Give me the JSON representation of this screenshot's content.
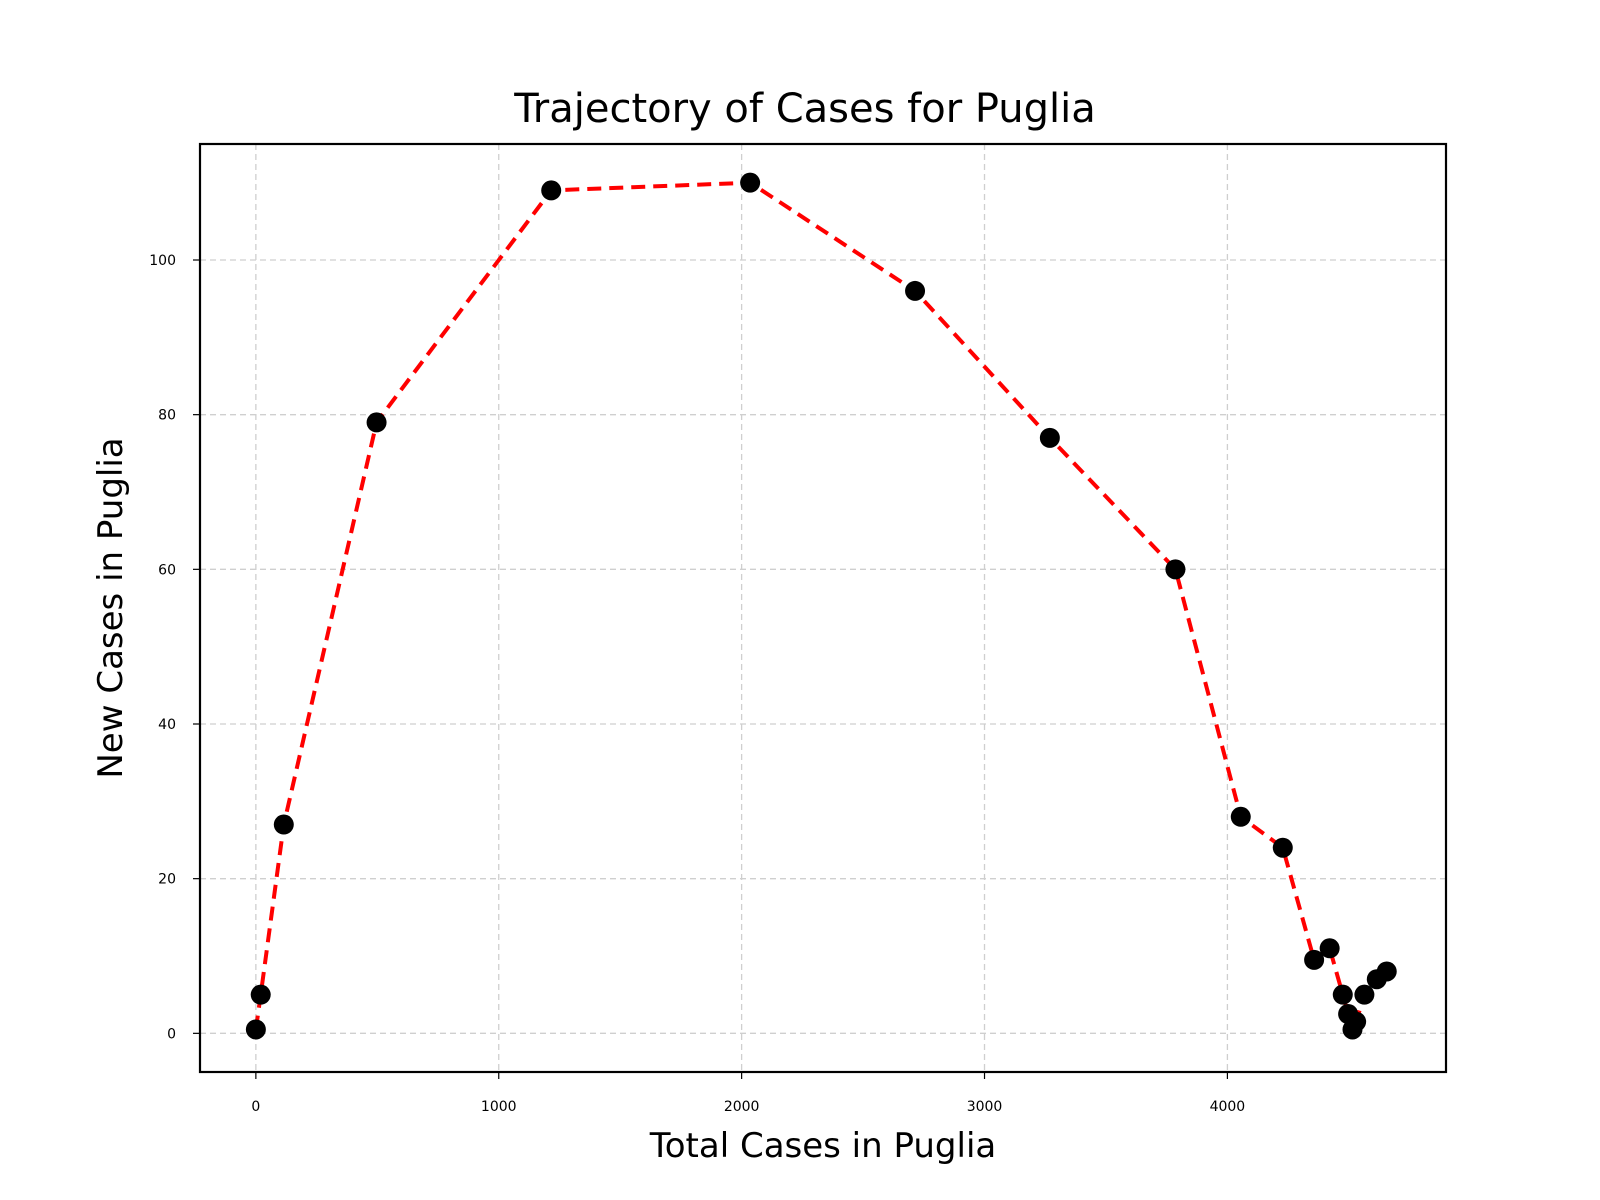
{
  "chart_data": {
    "type": "line",
    "title": "Trajectory of Cases for Puglia",
    "xlabel": "Total Cases in Puglia",
    "ylabel": "New Cases in Puglia",
    "xlim": [
      -230,
      4900
    ],
    "ylim": [
      -5,
      115
    ],
    "x_ticks": [
      0,
      1000,
      2000,
      3000,
      4000
    ],
    "y_ticks": [
      0,
      20,
      40,
      60,
      80,
      100
    ],
    "x_tick_labels": [
      "0",
      "1000",
      "2000",
      "3000",
      "4000"
    ],
    "y_tick_labels": [
      "0",
      "20",
      "40",
      "60",
      "80",
      "100"
    ],
    "grid": true,
    "colors": {
      "line": "#ff0000",
      "marker": "#000000"
    },
    "series": [
      {
        "x": [
          0,
          20,
          115,
          497,
          1216,
          2035,
          2714,
          3269,
          3786,
          4055,
          4228,
          4357,
          4421,
          4475,
          4497,
          4515,
          4530,
          4564,
          4615,
          4656
        ],
        "y": [
          0.5,
          5,
          27,
          79,
          109,
          110,
          96,
          77,
          60,
          28,
          24,
          9.5,
          11,
          5,
          2.5,
          0.5,
          1.5,
          5,
          7,
          8
        ]
      }
    ]
  }
}
